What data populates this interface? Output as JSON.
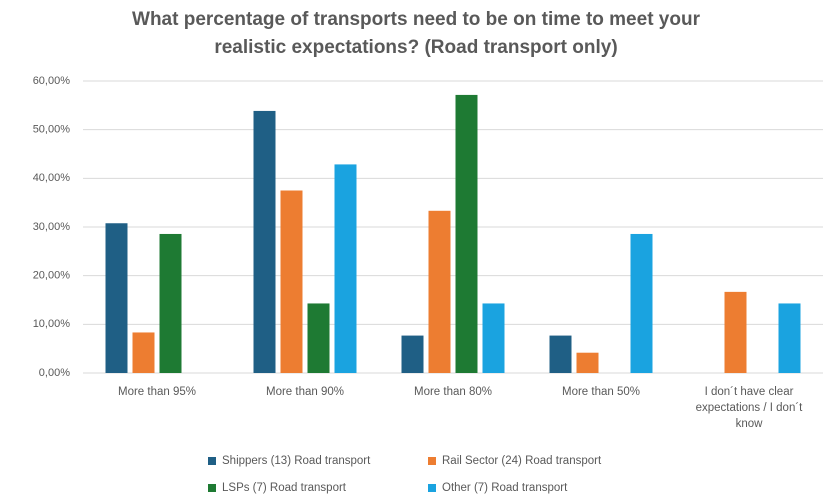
{
  "chart_data": {
    "type": "bar",
    "title": "What percentage of transports need to be on time to meet your realistic expectations? (Road transport only)",
    "categories": [
      "More than 95%",
      "More than 90%",
      "More than 80%",
      "More than 50%",
      "I don´t have clear expectations / I don´t know"
    ],
    "series": [
      {
        "name": "Shippers (13) Road transport",
        "color": "#1f5f85",
        "values": [
          30.77,
          53.85,
          7.69,
          7.69,
          0
        ]
      },
      {
        "name": "Rail Sector (24) Road transport",
        "color": "#ed7d31",
        "values": [
          8.33,
          37.5,
          33.33,
          4.17,
          16.67
        ]
      },
      {
        "name": "LSPs (7) Road transport",
        "color": "#1e7a33",
        "values": [
          28.57,
          14.29,
          57.14,
          0,
          0
        ]
      },
      {
        "name": "Other (7) Road transport",
        "color": "#1aa3e0",
        "values": [
          0,
          42.86,
          14.29,
          28.57,
          14.29
        ]
      }
    ],
    "ylim": [
      0,
      60
    ],
    "yticks": [
      {
        "value": 0,
        "label": "0,00%"
      },
      {
        "value": 10,
        "label": "10,00%"
      },
      {
        "value": 20,
        "label": "20,00%"
      },
      {
        "value": 30,
        "label": "30,00%"
      },
      {
        "value": 40,
        "label": "40,00%"
      },
      {
        "value": 50,
        "label": "50,00%"
      },
      {
        "value": 60,
        "label": "60,00%"
      }
    ],
    "grid": true
  }
}
